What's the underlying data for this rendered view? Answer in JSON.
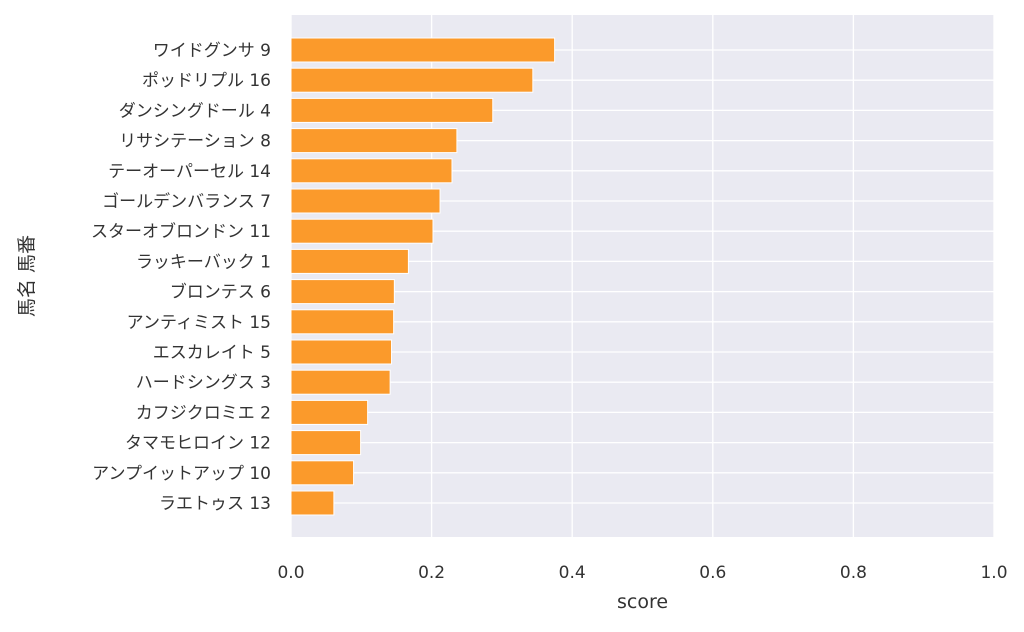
{
  "chart_data": {
    "type": "bar",
    "orientation": "horizontal",
    "xlabel": "score",
    "ylabel": "馬名 馬番",
    "xlim": [
      0.0,
      1.0
    ],
    "xticks": [
      "0.0",
      "0.2",
      "0.4",
      "0.6",
      "0.8",
      "1.0"
    ],
    "grid": true,
    "colors": {
      "bar": "#fb9a2b",
      "plot_background": "#eaeaf2",
      "grid": "#ffffff"
    },
    "categories": [
      "ワイドグンサ 9",
      "ポッドリプル 16",
      "ダンシングドール 4",
      "リサシテーション 8",
      "テーオーパーセル 14",
      "ゴールデンバランス 7",
      "スターオブロンドン 11",
      "ラッキーバック 1",
      "ブロンテス 6",
      "アンティミスト 15",
      "エスカレイト 5",
      "ハードシングス 3",
      "カフジクロミエ 2",
      "タマモヒロイン 12",
      "アンプイットアップ 10",
      "ラエトゥス 13"
    ],
    "values": [
      0.375,
      0.344,
      0.287,
      0.236,
      0.229,
      0.212,
      0.202,
      0.167,
      0.147,
      0.146,
      0.143,
      0.141,
      0.109,
      0.099,
      0.089,
      0.061
    ]
  }
}
